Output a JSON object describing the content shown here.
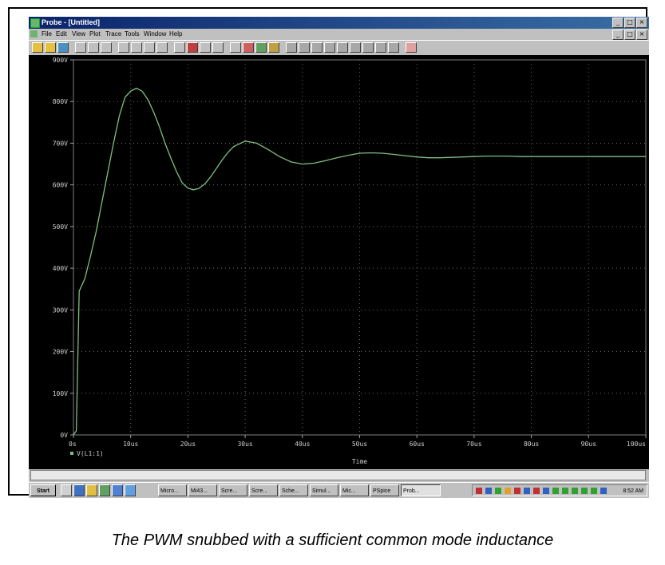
{
  "window": {
    "title": "Probe - [Untitled]",
    "buttons": [
      "_",
      "□",
      "×"
    ]
  },
  "menu": [
    "File",
    "Edit",
    "View",
    "Plot",
    "Trace",
    "Tools",
    "Window",
    "Help"
  ],
  "chart_data": {
    "type": "line",
    "title": "",
    "xlabel": "Time",
    "ylabel": "",
    "xlim": [
      0,
      100
    ],
    "ylim": [
      0,
      900
    ],
    "x_ticks": [
      "0s",
      "10us",
      "20us",
      "30us",
      "40us",
      "50us",
      "60us",
      "70us",
      "80us",
      "90us",
      "100us"
    ],
    "y_ticks": [
      "0V",
      "100V",
      "200V",
      "300V",
      "400V",
      "500V",
      "600V",
      "700V",
      "800V",
      "900V"
    ],
    "grid": true,
    "line_color": "#7fbf7f",
    "series": [
      {
        "name": "V(L1:1)",
        "x": [
          0,
          0.5,
          1,
          2,
          3,
          4,
          5,
          6,
          7,
          8,
          9,
          10,
          11,
          12,
          13,
          14,
          15,
          16,
          17,
          18,
          19,
          20,
          21,
          22,
          23,
          24,
          25,
          26,
          27,
          28,
          30,
          32,
          34,
          36,
          38,
          40,
          42,
          44,
          46,
          48,
          50,
          52,
          54,
          56,
          58,
          60,
          62,
          64,
          66,
          68,
          70,
          72,
          74,
          76,
          78,
          80,
          85,
          90,
          95,
          100
        ],
        "y": [
          0,
          10,
          345,
          375,
          430,
          490,
          560,
          630,
          700,
          765,
          810,
          825,
          832,
          825,
          805,
          775,
          740,
          700,
          665,
          632,
          605,
          592,
          588,
          592,
          603,
          620,
          640,
          660,
          678,
          692,
          705,
          700,
          685,
          668,
          655,
          650,
          652,
          658,
          665,
          671,
          676,
          677,
          676,
          673,
          670,
          667,
          665,
          665,
          666,
          667,
          668,
          669,
          669,
          669,
          668,
          668,
          668,
          668,
          668,
          668
        ]
      }
    ]
  },
  "scrollbar": {},
  "taskbar": {
    "start": "Start",
    "tasks": [
      "Micro...",
      "Mi43...",
      "Scre...",
      "Scre...",
      "Sche...",
      "Simul...",
      "Mic...",
      "PSpice",
      "Prob..."
    ],
    "clock": "8:52 AM"
  },
  "caption": "The PWM snubbed with a sufficient common mode inductance"
}
